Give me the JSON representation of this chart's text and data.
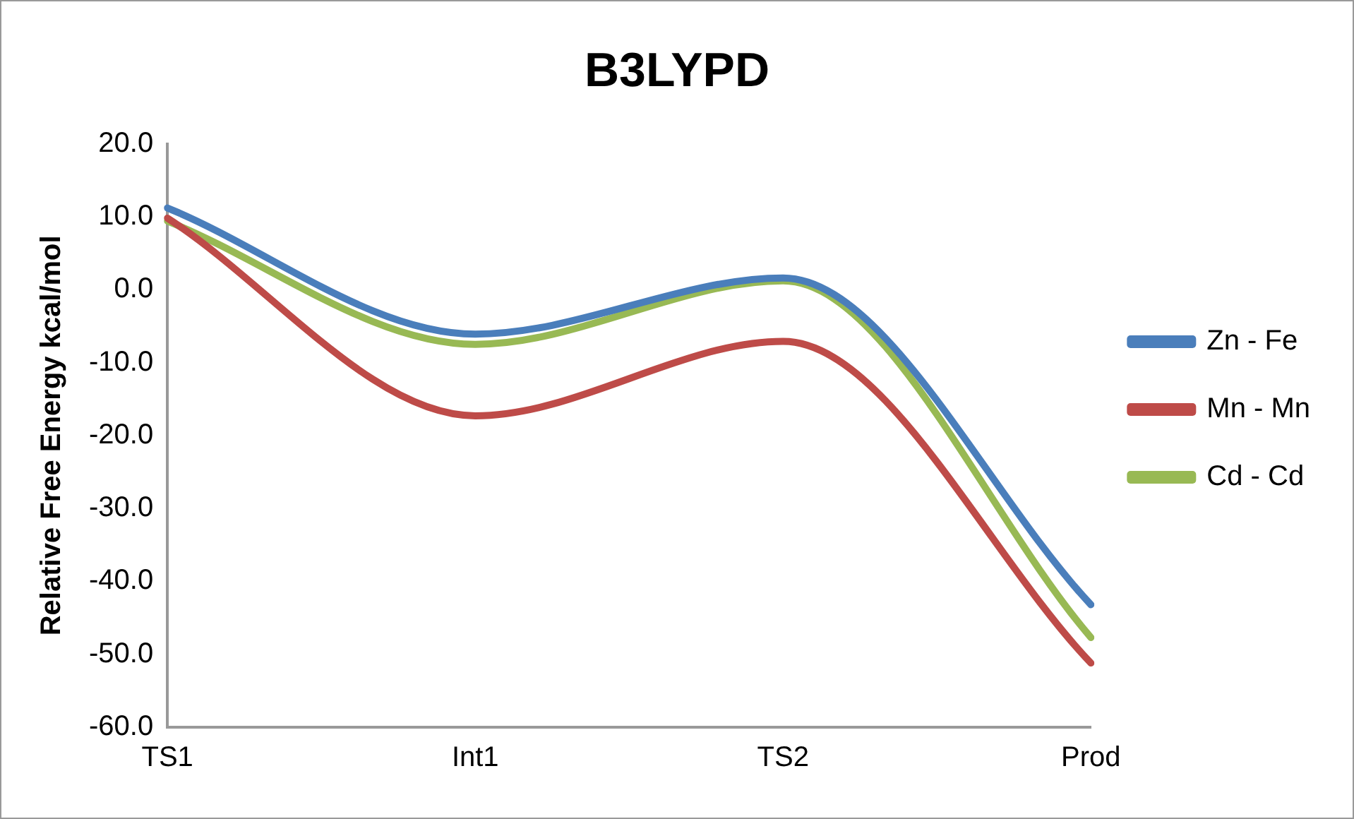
{
  "chart_data": {
    "type": "line",
    "title": "B3LYPD",
    "ylabel": "Relative Free Energy kcal/mol",
    "categories": [
      "TS1",
      "Int1",
      "TS2",
      "Prod"
    ],
    "series": [
      {
        "name": "Zn - Fe",
        "color": "#4a7ebb",
        "values": [
          11.2,
          -6.1,
          1.6,
          -43.2
        ]
      },
      {
        "name": "Mn - Mn",
        "color": "#be4b48",
        "values": [
          9.8,
          -17.3,
          -7.1,
          -51.2
        ]
      },
      {
        "name": "Cd - Cd",
        "color": "#98b954",
        "values": [
          9.4,
          -7.5,
          1.2,
          -47.7
        ]
      }
    ],
    "ylim": [
      -60,
      20
    ],
    "yticks": [
      {
        "value": -60,
        "label": "-60.0"
      },
      {
        "value": -50,
        "label": "-50.0"
      },
      {
        "value": -40,
        "label": "-40.0"
      },
      {
        "value": -30,
        "label": "-30.0"
      },
      {
        "value": -20,
        "label": "-20.0"
      },
      {
        "value": -10,
        "label": "-10.0"
      },
      {
        "value": 0,
        "label": "0.0"
      },
      {
        "value": 10,
        "label": "10.0"
      },
      {
        "value": 20,
        "label": "20.0"
      }
    ],
    "grid": false,
    "legend": "right",
    "marker": "none",
    "line_style": "solid"
  }
}
